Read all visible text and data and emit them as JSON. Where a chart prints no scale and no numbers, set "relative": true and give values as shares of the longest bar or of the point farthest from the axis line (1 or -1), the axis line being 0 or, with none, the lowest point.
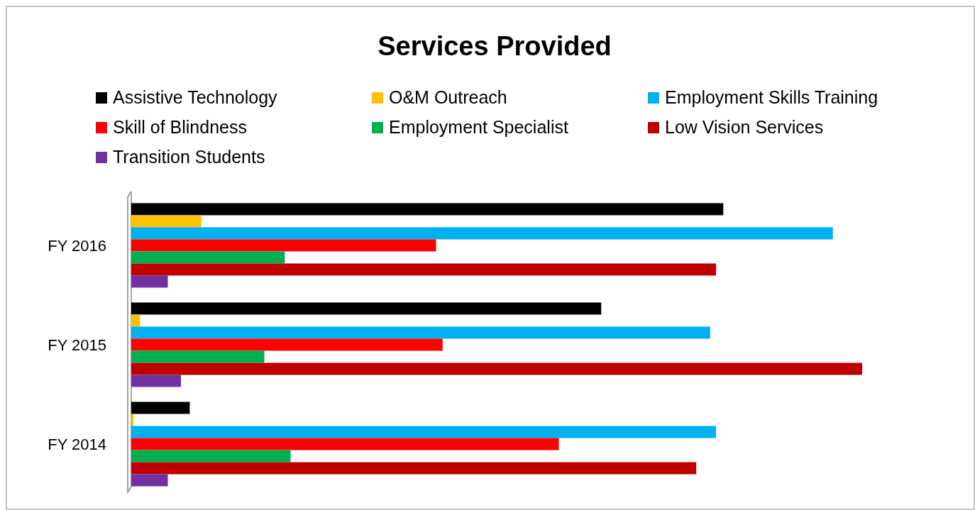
{
  "chart_data": {
    "type": "bar",
    "orientation": "horizontal",
    "relative": true,
    "title": "Services Provided",
    "categories": [
      "FY 2016",
      "FY 2015",
      "FY 2014"
    ],
    "legend": "top",
    "series": [
      {
        "name": "Assistive Technology",
        "color": "#000000",
        "values": [
          0.81,
          0.643,
          0.08
        ]
      },
      {
        "name": "O&M Outreach",
        "color": "#ffc000",
        "values": [
          0.096,
          0.012,
          0.003
        ]
      },
      {
        "name": "Employment Skills Training",
        "color": "#00b0f0",
        "values": [
          0.96,
          0.792,
          0.8
        ]
      },
      {
        "name": "Skill of Blindness",
        "color": "#ff0000",
        "values": [
          0.417,
          0.426,
          0.585
        ]
      },
      {
        "name": "Employment Specialist",
        "color": "#00b050",
        "values": [
          0.21,
          0.182,
          0.218
        ]
      },
      {
        "name": "Low Vision Services",
        "color": "#c00000",
        "values": [
          0.8,
          1,
          0.773
        ]
      },
      {
        "name": "Transition Students",
        "color": "#7030a0",
        "values": [
          0.05,
          0.068,
          0.05
        ]
      }
    ]
  }
}
